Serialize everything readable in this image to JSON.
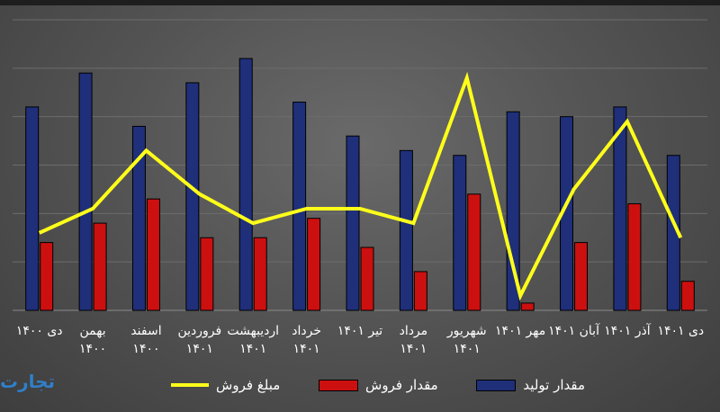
{
  "chart_data": {
    "type": "bar",
    "categories": [
      [
        "دی ۱۴۰۰"
      ],
      [
        "بهمن",
        "۱۴۰۰"
      ],
      [
        "اسفند",
        "۱۴۰۰"
      ],
      [
        "فروردین",
        "۱۴۰۱"
      ],
      [
        "اردیبهشت",
        "۱۴۰۱"
      ],
      [
        "خرداد",
        "۱۴۰۱"
      ],
      [
        "تیر ۱۴۰۱"
      ],
      [
        "مرداد",
        "۱۴۰۱"
      ],
      [
        "شهریور",
        "۱۴۰۱"
      ],
      [
        "مهر ۱۴۰۱"
      ],
      [
        "آبان ۱۴۰۱"
      ],
      [
        "آذر ۱۴۰۱"
      ],
      [
        "دی ۱۴۰۱"
      ]
    ],
    "series": [
      {
        "name": "مقدار تولید",
        "kind": "bar",
        "color": "#1f2f7a",
        "values": [
          4.2,
          4.9,
          3.8,
          4.7,
          5.2,
          4.3,
          3.6,
          3.3,
          3.2,
          4.1,
          4.0,
          4.2,
          3.2
        ]
      },
      {
        "name": "مقدار فروش",
        "kind": "bar",
        "color": "#cc1010",
        "values": [
          1.4,
          1.8,
          2.3,
          1.5,
          1.5,
          1.9,
          1.3,
          0.8,
          2.4,
          0.15,
          1.4,
          2.2,
          0.6
        ]
      },
      {
        "name": "مبلغ فروش",
        "kind": "line",
        "color": "#ffff1a",
        "values": [
          1.6,
          2.1,
          3.3,
          2.4,
          1.8,
          2.1,
          2.1,
          1.8,
          4.8,
          0.3,
          2.5,
          3.9,
          1.5
        ]
      }
    ],
    "ylim": [
      0,
      6
    ],
    "y_gridlines": 6,
    "grid": true,
    "legend_position": "bottom",
    "watermark": "تجارت"
  }
}
